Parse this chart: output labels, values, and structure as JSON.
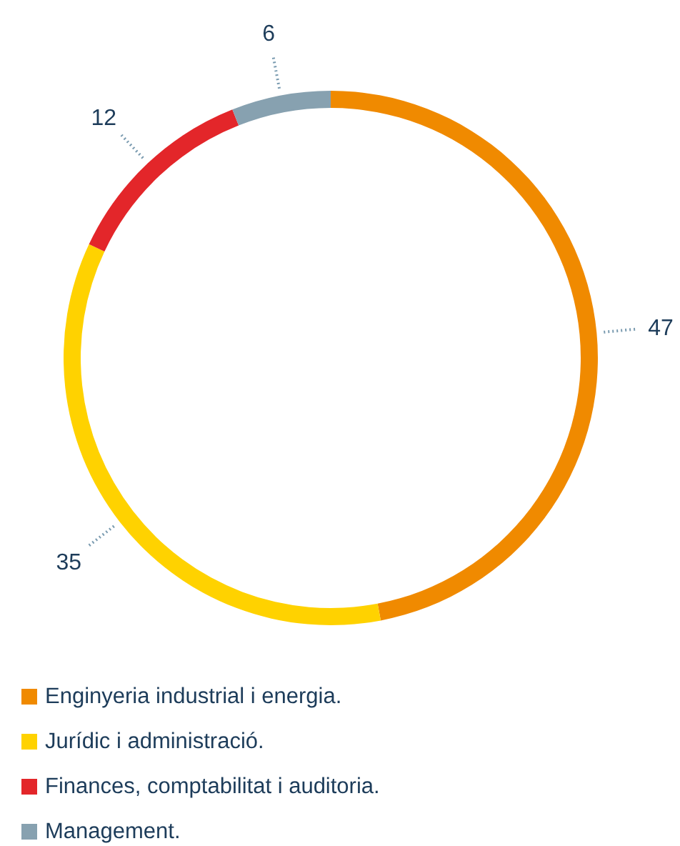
{
  "chart_data": {
    "type": "donut",
    "categories": [
      "Enginyeria industrial i energia.",
      "Jurídic i administració.",
      "Finances, comptabilitat i auditoria.",
      "Management."
    ],
    "values": [
      47,
      35,
      12,
      6
    ],
    "colors": [
      "#f08a00",
      "#ffd200",
      "#e3262a",
      "#87a1b0"
    ],
    "data_labels": true,
    "legend": "bottom"
  }
}
